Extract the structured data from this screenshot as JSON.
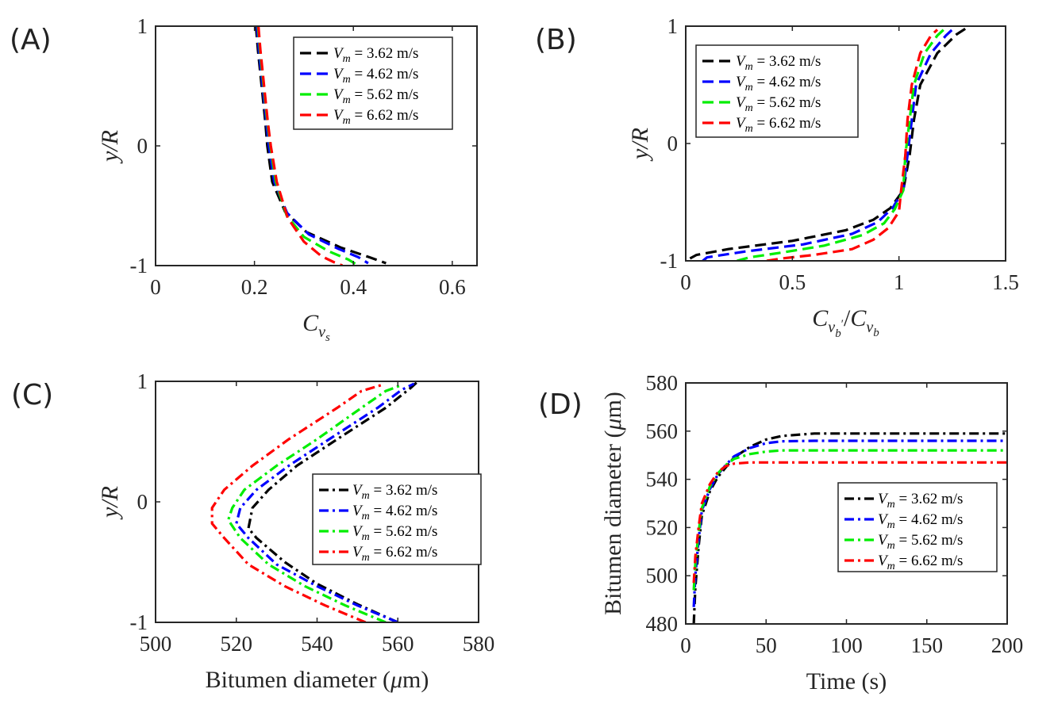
{
  "colors": {
    "s1": "#000000",
    "s2": "#0000ff",
    "s3": "#00ee00",
    "s4": "#ff0000"
  },
  "legend_labels": [
    "V_m = 3.62 m/s",
    "V_m = 4.62 m/s",
    "V_m = 5.62 m/s",
    "V_m = 6.62 m/s"
  ],
  "chart_data": [
    {
      "panel": "(A)",
      "type": "line",
      "line_style": "dashed",
      "xlabel": "C_{v_s}",
      "ylabel": "y/R",
      "xlim": [
        0,
        0.65
      ],
      "ylim": [
        -1,
        1
      ],
      "xticks": [
        "0",
        "0.2",
        "0.4",
        "0.6"
      ],
      "yticks": [
        "-1",
        "0",
        "1"
      ],
      "legend_loc": "top-right",
      "series": [
        {
          "name": "V_m = 3.62 m/s",
          "color": "#000000",
          "x": [
            0.203,
            0.207,
            0.212,
            0.217,
            0.222,
            0.226,
            0.236,
            0.262,
            0.305,
            0.375,
            0.432,
            0.466
          ],
          "y": [
            1,
            0.8,
            0.6,
            0.4,
            0.2,
            0,
            -0.3,
            -0.55,
            -0.72,
            -0.85,
            -0.93,
            -0.98
          ]
        },
        {
          "name": "V_m = 4.62 m/s",
          "color": "#0000ff",
          "x": [
            0.205,
            0.209,
            0.214,
            0.219,
            0.224,
            0.229,
            0.24,
            0.266,
            0.31,
            0.37,
            0.41,
            0.43
          ],
          "y": [
            1,
            0.8,
            0.6,
            0.4,
            0.2,
            0,
            -0.3,
            -0.56,
            -0.74,
            -0.86,
            -0.93,
            -0.98
          ]
        },
        {
          "name": "V_m = 5.62 m/s",
          "color": "#00ee00",
          "x": [
            0.207,
            0.211,
            0.216,
            0.221,
            0.226,
            0.232,
            0.243,
            0.265,
            0.3,
            0.35,
            0.39,
            0.41
          ],
          "y": [
            1,
            0.8,
            0.6,
            0.4,
            0.2,
            0,
            -0.3,
            -0.58,
            -0.76,
            -0.88,
            -0.95,
            -1.0
          ]
        },
        {
          "name": "V_m = 6.62 m/s",
          "color": "#ff0000",
          "x": [
            0.208,
            0.212,
            0.217,
            0.222,
            0.227,
            0.233,
            0.245,
            0.267,
            0.3,
            0.335,
            0.36,
            0.378
          ],
          "y": [
            1,
            0.8,
            0.6,
            0.4,
            0.2,
            0,
            -0.3,
            -0.6,
            -0.8,
            -0.92,
            -0.97,
            -1.0
          ]
        }
      ]
    },
    {
      "panel": "(B)",
      "type": "line",
      "line_style": "dashed",
      "xlabel": "C_{v_b'}/C_{v_b}",
      "ylabel": "y/R",
      "xlim": [
        0,
        1.5
      ],
      "ylim": [
        -1,
        1
      ],
      "xticks": [
        "0",
        "0.5",
        "1",
        "1.5"
      ],
      "yticks": [
        "-1",
        "0",
        "1"
      ],
      "legend_loc": "top-left",
      "series": [
        {
          "name": "V_m = 3.62 m/s",
          "color": "#000000",
          "x": [
            0.02,
            0.05,
            0.2,
            0.5,
            0.75,
            0.88,
            0.96,
            1.02,
            1.05,
            1.07,
            1.1,
            1.18,
            1.27,
            1.33
          ],
          "y": [
            -0.98,
            -0.95,
            -0.9,
            -0.83,
            -0.74,
            -0.65,
            -0.55,
            -0.4,
            -0.1,
            0.2,
            0.5,
            0.77,
            0.93,
            1.0
          ]
        },
        {
          "name": "V_m = 4.62 m/s",
          "color": "#0000ff",
          "x": [
            0.08,
            0.1,
            0.28,
            0.55,
            0.78,
            0.9,
            0.97,
            1.02,
            1.04,
            1.06,
            1.08,
            1.15,
            1.22,
            1.25
          ],
          "y": [
            -1.0,
            -0.97,
            -0.92,
            -0.86,
            -0.77,
            -0.67,
            -0.55,
            -0.4,
            -0.1,
            0.2,
            0.5,
            0.77,
            0.92,
            0.97
          ]
        },
        {
          "name": "V_m = 5.62 m/s",
          "color": "#00ee00",
          "x": [
            0.24,
            0.3,
            0.45,
            0.65,
            0.83,
            0.93,
            0.98,
            1.02,
            1.03,
            1.05,
            1.07,
            1.12,
            1.18,
            1.21
          ],
          "y": [
            -1.0,
            -0.97,
            -0.93,
            -0.87,
            -0.78,
            -0.68,
            -0.56,
            -0.4,
            -0.1,
            0.2,
            0.5,
            0.77,
            0.92,
            0.97
          ]
        },
        {
          "name": "V_m = 6.62 m/s",
          "color": "#ff0000",
          "x": [
            0.38,
            0.45,
            0.6,
            0.78,
            0.88,
            0.95,
            1.0,
            1.01,
            1.03,
            1.04,
            1.06,
            1.1,
            1.15,
            1.18
          ],
          "y": [
            -1.0,
            -0.98,
            -0.95,
            -0.9,
            -0.82,
            -0.72,
            -0.58,
            -0.4,
            -0.1,
            0.2,
            0.5,
            0.77,
            0.92,
            0.97
          ]
        }
      ]
    },
    {
      "panel": "(C)",
      "type": "line",
      "line_style": "dashdot",
      "xlabel": "Bitumen diameter (μm)",
      "ylabel": "y/R",
      "xlim": [
        500,
        580
      ],
      "ylim": [
        -1,
        1
      ],
      "xticks": [
        "500",
        "520",
        "540",
        "560",
        "580"
      ],
      "yticks": [
        "-1",
        "0",
        "1"
      ],
      "legend_loc": "bottom-right",
      "series": [
        {
          "name": "V_m = 3.62 m/s",
          "color": "#000000",
          "x": [
            560,
            550,
            540,
            532,
            525,
            523,
            524,
            528,
            535,
            545,
            557,
            563,
            565
          ],
          "y": [
            -1,
            -0.85,
            -0.68,
            -0.5,
            -0.3,
            -0.22,
            -0.05,
            0.1,
            0.3,
            0.52,
            0.78,
            0.94,
            1.0
          ]
        },
        {
          "name": "V_m = 4.62 m/s",
          "color": "#0000ff",
          "x": [
            560,
            550,
            540,
            530,
            523,
            520,
            521,
            525,
            533,
            543,
            555,
            561,
            564
          ],
          "y": [
            -1,
            -0.86,
            -0.7,
            -0.52,
            -0.3,
            -0.18,
            -0.05,
            0.1,
            0.3,
            0.52,
            0.78,
            0.93,
            0.98
          ]
        },
        {
          "name": "V_m = 5.62 m/s",
          "color": "#00ee00",
          "x": [
            557,
            547,
            537,
            528,
            521,
            518,
            519,
            522,
            530,
            540,
            551,
            557,
            561
          ],
          "y": [
            -1,
            -0.86,
            -0.7,
            -0.52,
            -0.3,
            -0.15,
            -0.05,
            0.1,
            0.3,
            0.52,
            0.78,
            0.92,
            0.97
          ]
        },
        {
          "name": "V_m = 6.62 m/s",
          "color": "#ff0000",
          "x": [
            552,
            542,
            532,
            523,
            517,
            514,
            514,
            517,
            524,
            533,
            545,
            551,
            556
          ],
          "y": [
            -1,
            -0.86,
            -0.7,
            -0.52,
            -0.3,
            -0.18,
            -0.05,
            0.1,
            0.3,
            0.52,
            0.78,
            0.92,
            0.97
          ]
        }
      ]
    },
    {
      "panel": "(D)",
      "type": "line",
      "line_style": "dashdot",
      "xlabel": "Time (s)",
      "ylabel": "Bitumen diameter (μm)",
      "xlim": [
        0,
        200
      ],
      "ylim": [
        480,
        580
      ],
      "xticks": [
        "0",
        "50",
        "100",
        "150",
        "200"
      ],
      "yticks": [
        "480",
        "500",
        "520",
        "540",
        "560",
        "580"
      ],
      "legend_loc": "bottom-right",
      "series": [
        {
          "name": "V_m = 3.62 m/s",
          "color": "#000000",
          "x": [
            5,
            6,
            8,
            10,
            15,
            20,
            25,
            30,
            40,
            50,
            60,
            80,
            200
          ],
          "y": [
            480,
            495,
            512,
            525,
            535,
            541,
            545,
            549,
            553.5,
            556.5,
            558,
            559,
            559
          ]
        },
        {
          "name": "V_m = 4.62 m/s",
          "color": "#0000ff",
          "x": [
            5,
            6,
            8,
            10,
            15,
            20,
            25,
            30,
            40,
            50,
            60,
            80,
            200
          ],
          "y": [
            487,
            500,
            515,
            527,
            536,
            542,
            546,
            549.5,
            553,
            555,
            555.8,
            556,
            556
          ]
        },
        {
          "name": "V_m = 5.62 m/s",
          "color": "#00ee00",
          "x": [
            5,
            6,
            8,
            10,
            15,
            20,
            25,
            30,
            40,
            50,
            60,
            80,
            200
          ],
          "y": [
            494,
            505,
            518,
            528,
            537,
            542.5,
            546,
            548.5,
            550.5,
            551.5,
            552,
            552,
            552
          ]
        },
        {
          "name": "V_m = 6.62 m/s",
          "color": "#ff0000",
          "x": [
            5,
            6,
            8,
            10,
            15,
            20,
            25,
            30,
            40,
            50,
            60,
            80,
            200
          ],
          "y": [
            497,
            508,
            520,
            530,
            538,
            543,
            545.5,
            546.5,
            547,
            547,
            547,
            547,
            547
          ]
        }
      ]
    }
  ]
}
